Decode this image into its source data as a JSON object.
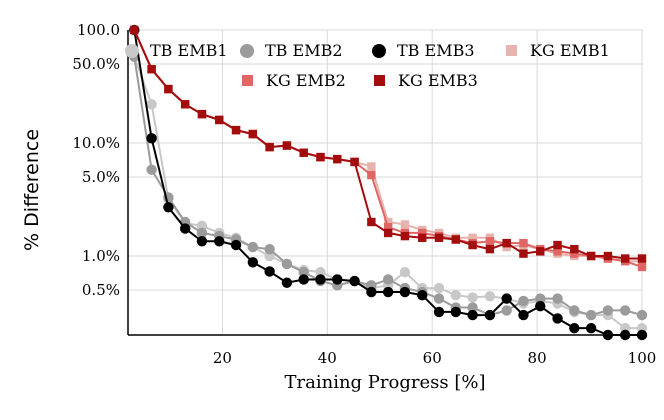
{
  "chart_data": {
    "type": "line",
    "title": "",
    "xlabel": "Training Progress [%]",
    "ylabel": "% Difference",
    "xlim": [
      2,
      100
    ],
    "ylim": [
      0.2,
      100
    ],
    "yscale": "log",
    "x_ticks": [
      20,
      40,
      60,
      80,
      100
    ],
    "x_tick_labels": [
      "20",
      "40",
      "60",
      "80",
      "100"
    ],
    "y_ticks": [
      0.5,
      1,
      5,
      10,
      50,
      100
    ],
    "y_tick_labels": [
      "0.5%",
      "1.0%",
      "5.0%",
      "10.0%",
      "50.0%",
      "100.0"
    ],
    "grid": true,
    "legend_position": "top",
    "x": [
      3.2,
      6.5,
      9.7,
      12.9,
      16.1,
      19.4,
      22.6,
      25.8,
      29.0,
      32.3,
      35.5,
      38.7,
      41.9,
      45.2,
      48.4,
      51.6,
      54.8,
      58.1,
      61.3,
      64.5,
      67.7,
      71.0,
      74.2,
      77.4,
      80.6,
      83.9,
      87.1,
      90.3,
      93.5,
      96.8,
      100.0
    ],
    "series": [
      {
        "name": "TB EMB1",
        "marker": "circle",
        "color": "#c8c8c8",
        "values": [
          58,
          22,
          3.2,
          1.95,
          1.85,
          1.6,
          1.45,
          1.2,
          1.0,
          0.85,
          0.75,
          0.72,
          0.62,
          0.6,
          0.52,
          0.55,
          0.72,
          0.52,
          0.52,
          0.45,
          0.43,
          0.44,
          0.42,
          0.38,
          0.4,
          0.38,
          0.32,
          0.3,
          0.3,
          0.23,
          0.23
        ]
      },
      {
        "name": "TB EMB2",
        "marker": "circle",
        "color": "#9b9b9b",
        "values": [
          58,
          5.8,
          3.3,
          2.0,
          1.6,
          1.5,
          1.4,
          1.2,
          1.15,
          0.85,
          0.72,
          0.6,
          0.55,
          0.6,
          0.55,
          0.62,
          0.52,
          0.48,
          0.42,
          0.35,
          0.35,
          0.3,
          0.33,
          0.4,
          0.42,
          0.42,
          0.33,
          0.3,
          0.33,
          0.33,
          0.3
        ]
      },
      {
        "name": "TB EMB3",
        "marker": "circle",
        "color": "#000000",
        "values": [
          100,
          11,
          2.7,
          1.75,
          1.35,
          1.35,
          1.25,
          0.88,
          0.73,
          0.58,
          0.62,
          0.62,
          0.62,
          0.6,
          0.48,
          0.48,
          0.48,
          0.45,
          0.32,
          0.32,
          0.3,
          0.3,
          0.42,
          0.3,
          0.36,
          0.28,
          0.23,
          0.23,
          0.2,
          0.2,
          0.18
        ]
      },
      {
        "name": "KG EMB1",
        "marker": "square",
        "color": "#e6b4ad",
        "values": [
          100,
          45,
          30,
          22,
          18,
          16,
          13,
          12,
          9.2,
          9.5,
          8.2,
          7.5,
          7.2,
          6.8,
          6.2,
          2.0,
          1.9,
          1.7,
          1.6,
          1.45,
          1.45,
          1.45,
          1.2,
          1.25,
          1.15,
          1.05,
          1.0,
          1.0,
          0.95,
          0.9,
          0.9
        ]
      },
      {
        "name": "KG EMB2",
        "marker": "square",
        "color": "#e06666",
        "values": [
          100,
          45,
          30,
          22,
          18,
          16,
          13,
          12,
          9.2,
          9.5,
          8.2,
          7.5,
          7.2,
          6.8,
          5.2,
          1.8,
          1.6,
          1.6,
          1.5,
          1.4,
          1.3,
          1.35,
          1.3,
          1.3,
          1.15,
          1.1,
          1.05,
          1.0,
          0.95,
          0.9,
          0.8
        ]
      },
      {
        "name": "KG EMB3",
        "marker": "square",
        "color": "#a30d0d",
        "values": [
          100,
          45,
          30,
          22,
          18,
          16,
          13,
          12,
          9.2,
          9.5,
          8.2,
          7.5,
          7.2,
          6.8,
          2.0,
          1.6,
          1.5,
          1.45,
          1.45,
          1.4,
          1.25,
          1.15,
          1.3,
          1.05,
          1.1,
          1.25,
          1.15,
          1.0,
          1.0,
          0.95,
          0.95
        ]
      }
    ]
  }
}
